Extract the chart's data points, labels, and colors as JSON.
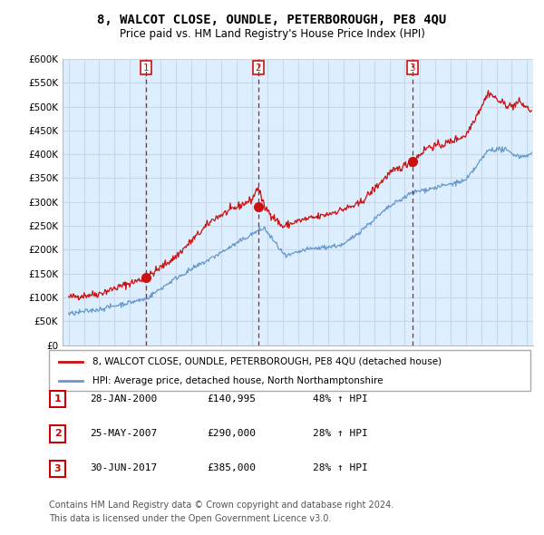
{
  "title_line1": "8, WALCOT CLOSE, OUNDLE, PETERBOROUGH, PE8 4QU",
  "title_line2": "Price paid vs. HM Land Registry's House Price Index (HPI)",
  "background_color": "#ffffff",
  "grid_color": "#c8d8e8",
  "plot_bg_color": "#ddeeff",
  "red_line_color": "#cc1111",
  "blue_line_color": "#6699cc",
  "sale_marker_color": "#cc1111",
  "sale_dashed_color": "#cc1111",
  "ylim": [
    0,
    600000
  ],
  "yticks": [
    0,
    50000,
    100000,
    150000,
    200000,
    250000,
    300000,
    350000,
    400000,
    450000,
    500000,
    550000,
    600000
  ],
  "ytick_labels": [
    "£0",
    "£50K",
    "£100K",
    "£150K",
    "£200K",
    "£250K",
    "£300K",
    "£350K",
    "£400K",
    "£450K",
    "£500K",
    "£550K",
    "£600K"
  ],
  "xlim_start": 1994.6,
  "xlim_end": 2025.4,
  "sale_dates": [
    2000.07,
    2007.4,
    2017.5
  ],
  "sale_prices": [
    140995,
    290000,
    385000
  ],
  "sale_labels": [
    "1",
    "2",
    "3"
  ],
  "legend_red_label": "8, WALCOT CLOSE, OUNDLE, PETERBOROUGH, PE8 4QU (detached house)",
  "legend_blue_label": "HPI: Average price, detached house, North Northamptonshire",
  "table_rows": [
    [
      "1",
      "28-JAN-2000",
      "£140,995",
      "48% ↑ HPI"
    ],
    [
      "2",
      "25-MAY-2007",
      "£290,000",
      "28% ↑ HPI"
    ],
    [
      "3",
      "30-JUN-2017",
      "£385,000",
      "28% ↑ HPI"
    ]
  ],
  "footer_line1": "Contains HM Land Registry data © Crown copyright and database right 2024.",
  "footer_line2": "This data is licensed under the Open Government Licence v3.0."
}
